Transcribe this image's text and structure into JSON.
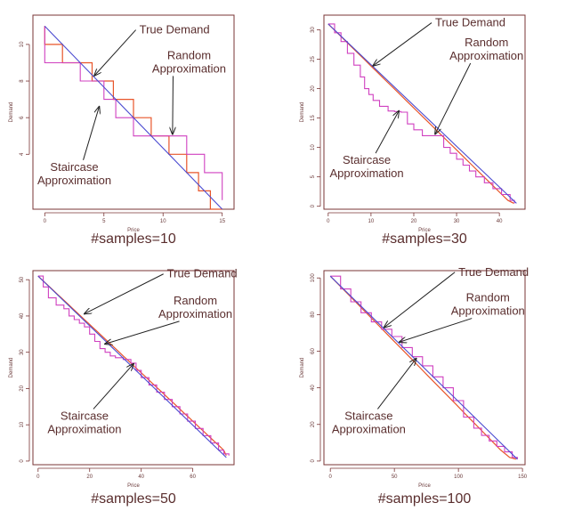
{
  "chart_data": [
    {
      "type": "line",
      "caption": "#samples=10",
      "xlabel": "Price",
      "ylabel": "Demand",
      "xlim": [
        -1,
        16
      ],
      "ylim": [
        1,
        11.6
      ],
      "xticks": [
        0,
        5,
        10,
        15
      ],
      "yticks": [
        4,
        6,
        8,
        10
      ],
      "true_demand": [
        [
          0,
          11
        ],
        [
          15,
          1
        ]
      ],
      "series": [
        {
          "values": [
            [
              0,
              11
            ],
            [
              0,
              10
            ],
            [
              1.5,
              10
            ],
            [
              1.5,
              9
            ],
            [
              4,
              9
            ],
            [
              4,
              8
            ],
            [
              5.8,
              8
            ],
            [
              5.8,
              7
            ],
            [
              7.5,
              7
            ],
            [
              7.5,
              6
            ],
            [
              9,
              6
            ],
            [
              9,
              5
            ],
            [
              10.5,
              5
            ],
            [
              10.5,
              4
            ],
            [
              12,
              4
            ],
            [
              12,
              3
            ],
            [
              13,
              3
            ],
            [
              13,
              2
            ],
            [
              14,
              2
            ],
            [
              14,
              1
            ],
            [
              15,
              1
            ]
          ]
        },
        {
          "values": [
            [
              0,
              11
            ],
            [
              0,
              9
            ],
            [
              3,
              9
            ],
            [
              3,
              8
            ],
            [
              5,
              8
            ],
            [
              5,
              7
            ],
            [
              6,
              7
            ],
            [
              6,
              6
            ],
            [
              7.5,
              6
            ],
            [
              7.5,
              5
            ],
            [
              12,
              5
            ],
            [
              12,
              4
            ],
            [
              13.5,
              4
            ],
            [
              13.5,
              3
            ],
            [
              15,
              3
            ],
            [
              15,
              1.5
            ]
          ]
        }
      ],
      "annotations": [
        {
          "lines": [
            "True Demand"
          ],
          "anchor": "start",
          "tx": 8,
          "ty": 10.6,
          "tip": [
            4.2,
            8.3
          ]
        },
        {
          "lines": [
            "Random",
            "Approximation"
          ],
          "anchor": "middle",
          "tx": 12.2,
          "ty": 9.2,
          "tip": [
            10.8,
            5.1
          ]
        },
        {
          "lines": [
            "Staircase",
            "Approximation"
          ],
          "anchor": "middle",
          "tx": 2.5,
          "ty": 3.1,
          "tip": [
            4.6,
            6.6
          ]
        }
      ]
    },
    {
      "type": "line",
      "caption": "#samples=30",
      "xlabel": "Price",
      "ylabel": "Demand",
      "xlim": [
        -1,
        46
      ],
      "ylim": [
        -0.5,
        32.5
      ],
      "xticks": [
        0,
        10,
        20,
        30,
        40
      ],
      "yticks": [
        0,
        5,
        10,
        15,
        20,
        25,
        30
      ],
      "true_demand": [
        [
          0,
          31
        ],
        [
          44,
          0.5
        ]
      ],
      "series": [
        {
          "values": [
            [
              0,
              31
            ],
            [
              1.4,
              30
            ],
            [
              2.8,
              29
            ],
            [
              4.2,
              28
            ],
            [
              5.6,
              27
            ],
            [
              7,
              26
            ],
            [
              8.4,
              25
            ],
            [
              9.8,
              24
            ],
            [
              11.2,
              23
            ],
            [
              12.6,
              22
            ],
            [
              14,
              21
            ],
            [
              15.4,
              20
            ],
            [
              16.8,
              19
            ],
            [
              18.2,
              18
            ],
            [
              19.6,
              17
            ],
            [
              21,
              16
            ],
            [
              22.4,
              15
            ],
            [
              23.8,
              14
            ],
            [
              25.2,
              13
            ],
            [
              26.6,
              12
            ],
            [
              28,
              11
            ],
            [
              29.4,
              10
            ],
            [
              30.8,
              9
            ],
            [
              32.2,
              8
            ],
            [
              33.6,
              7
            ],
            [
              35,
              6
            ],
            [
              36.4,
              5
            ],
            [
              37.8,
              4
            ],
            [
              39.2,
              3
            ],
            [
              40.6,
              2
            ],
            [
              42,
              1
            ],
            [
              43.4,
              0.5
            ]
          ]
        },
        {
          "values": [
            [
              0,
              31
            ],
            [
              1.5,
              29.5
            ],
            [
              3,
              28
            ],
            [
              4.5,
              26
            ],
            [
              6,
              24
            ],
            [
              7.5,
              22
            ],
            [
              8.5,
              20
            ],
            [
              9.5,
              19
            ],
            [
              10.5,
              18
            ],
            [
              12,
              17
            ],
            [
              14,
              16.2
            ],
            [
              15.5,
              16.1
            ],
            [
              17,
              16
            ],
            [
              18.5,
              14
            ],
            [
              20,
              13
            ],
            [
              22,
              12
            ],
            [
              25,
              12
            ],
            [
              27,
              10
            ],
            [
              28.5,
              9
            ],
            [
              30,
              8
            ],
            [
              31.5,
              7
            ],
            [
              33,
              6
            ],
            [
              34.5,
              5
            ],
            [
              36.5,
              4
            ],
            [
              38.5,
              3
            ],
            [
              40.5,
              2
            ],
            [
              42.5,
              1
            ],
            [
              43.5,
              0.5
            ]
          ]
        }
      ],
      "annotations": [
        {
          "lines": [
            "True Demand"
          ],
          "anchor": "start",
          "tx": 25,
          "ty": 30.6,
          "tip": [
            10.5,
            23.9
          ]
        },
        {
          "lines": [
            "Random",
            "Approximation"
          ],
          "anchor": "middle",
          "tx": 37,
          "ty": 27.2,
          "tip": [
            25,
            12.3
          ]
        },
        {
          "lines": [
            "Staircase",
            "Approximation"
          ],
          "anchor": "middle",
          "tx": 9,
          "ty": 7.2,
          "tip": [
            16.5,
            16.2
          ]
        }
      ]
    },
    {
      "type": "line",
      "caption": "#samples=50",
      "xlabel": "Price",
      "ylabel": "Demand",
      "xlim": [
        -2,
        76
      ],
      "ylim": [
        -1,
        52.5
      ],
      "xticks": [
        0,
        20,
        40,
        60
      ],
      "yticks": [
        0,
        10,
        20,
        30,
        40,
        50
      ],
      "true_demand": [
        [
          0,
          51
        ],
        [
          73,
          1
        ]
      ],
      "series": [
        {
          "values": [
            [
              0,
              51
            ],
            [
              1.5,
              50
            ],
            [
              3,
              49
            ],
            [
              4.5,
              48
            ],
            [
              6,
              47
            ],
            [
              7.5,
              46
            ],
            [
              9,
              45
            ],
            [
              10.5,
              44
            ],
            [
              12,
              43
            ],
            [
              13.5,
              42
            ],
            [
              15,
              41
            ],
            [
              16.5,
              40
            ],
            [
              18,
              39
            ],
            [
              19.5,
              38
            ],
            [
              21,
              37
            ],
            [
              22.5,
              36
            ],
            [
              24,
              35
            ],
            [
              25.5,
              34
            ],
            [
              27,
              33
            ],
            [
              28.5,
              32
            ],
            [
              30,
              31
            ],
            [
              31.5,
              30
            ],
            [
              33,
              29
            ],
            [
              34.5,
              28
            ],
            [
              36,
              27
            ],
            [
              37.5,
              26
            ],
            [
              39,
              25
            ],
            [
              40.5,
              24
            ],
            [
              42,
              23
            ],
            [
              43.5,
              22
            ],
            [
              45,
              21
            ],
            [
              46.5,
              20
            ],
            [
              48,
              19
            ],
            [
              49.5,
              18
            ],
            [
              51,
              17
            ],
            [
              52.5,
              16
            ],
            [
              54,
              15
            ],
            [
              55.5,
              14
            ],
            [
              57,
              13
            ],
            [
              58.5,
              12
            ],
            [
              60,
              11
            ],
            [
              61.5,
              10
            ],
            [
              63,
              9
            ],
            [
              64.5,
              8
            ],
            [
              66,
              7
            ],
            [
              67.5,
              6
            ],
            [
              69,
              5
            ],
            [
              70.5,
              4
            ],
            [
              72,
              3
            ],
            [
              73,
              1.5
            ]
          ]
        },
        {
          "values": [
            [
              0,
              51
            ],
            [
              2,
              48
            ],
            [
              4,
              45
            ],
            [
              7,
              43
            ],
            [
              10,
              42
            ],
            [
              12,
              40
            ],
            [
              14,
              39
            ],
            [
              16,
              38
            ],
            [
              18,
              37
            ],
            [
              20,
              35
            ],
            [
              22,
              33
            ],
            [
              24,
              31
            ],
            [
              26,
              30
            ],
            [
              28,
              29
            ],
            [
              30,
              28.5
            ],
            [
              33,
              28
            ],
            [
              36,
              27
            ],
            [
              38,
              25
            ],
            [
              40,
              23
            ],
            [
              43,
              21
            ],
            [
              46,
              19
            ],
            [
              49,
              17
            ],
            [
              52,
              15
            ],
            [
              55,
              13
            ],
            [
              58,
              11
            ],
            [
              61,
              9
            ],
            [
              64,
              7
            ],
            [
              67,
              5
            ],
            [
              70,
              3
            ],
            [
              72,
              2
            ],
            [
              74,
              1.5
            ]
          ]
        }
      ],
      "annotations": [
        {
          "lines": [
            "True Demand"
          ],
          "anchor": "start",
          "tx": 50,
          "ty": 50.6,
          "tip": [
            18,
            40.6
          ]
        },
        {
          "lines": [
            "Random",
            "Approximation"
          ],
          "anchor": "middle",
          "tx": 61,
          "ty": 43.2,
          "tip": [
            26,
            32.3
          ]
        },
        {
          "lines": [
            "Staircase",
            "Approximation"
          ],
          "anchor": "middle",
          "tx": 18,
          "ty": 11.4,
          "tip": [
            37,
            26.8
          ]
        }
      ]
    },
    {
      "type": "line",
      "caption": "#samples=100",
      "xlabel": "Price",
      "ylabel": "Demand",
      "xlim": [
        -5,
        152
      ],
      "ylim": [
        -2,
        104
      ],
      "xticks": [
        0,
        50,
        100,
        150
      ],
      "yticks": [
        0,
        20,
        40,
        60,
        80,
        100
      ],
      "true_demand": [
        [
          0,
          101
        ],
        [
          146,
          1
        ]
      ],
      "series": [
        {
          "values": [
            [
              0,
              101
            ],
            [
              7,
              96
            ],
            [
              14,
              91
            ],
            [
              21,
              86
            ],
            [
              28,
              81
            ],
            [
              35,
              76
            ],
            [
              42,
              71
            ],
            [
              49,
              66
            ],
            [
              56,
              61
            ],
            [
              63,
              56
            ],
            [
              70,
              51
            ],
            [
              77,
              46
            ],
            [
              84,
              41
            ],
            [
              91,
              36
            ],
            [
              98,
              31
            ],
            [
              105,
              26
            ],
            [
              112,
              21
            ],
            [
              119,
              16
            ],
            [
              126,
              11
            ],
            [
              133,
              6
            ],
            [
              140,
              2
            ],
            [
              145,
              1
            ]
          ]
        },
        {
          "values": [
            [
              0,
              101
            ],
            [
              8,
              94
            ],
            [
              16,
              87
            ],
            [
              24,
              81
            ],
            [
              32,
              76
            ],
            [
              40,
              72
            ],
            [
              48,
              68
            ],
            [
              56,
              62
            ],
            [
              64,
              57
            ],
            [
              72,
              52
            ],
            [
              80,
              46
            ],
            [
              88,
              40
            ],
            [
              96,
              33
            ],
            [
              104,
              24
            ],
            [
              112,
              18
            ],
            [
              118,
              14
            ],
            [
              124,
              11
            ],
            [
              130,
              8
            ],
            [
              136,
              5
            ],
            [
              142,
              2
            ],
            [
              146,
              1
            ]
          ]
        }
      ],
      "annotations": [
        {
          "lines": [
            "True Demand"
          ],
          "anchor": "start",
          "tx": 100,
          "ty": 101.2,
          "tip": [
            42,
            73
          ]
        },
        {
          "lines": [
            "Random",
            "Approximation"
          ],
          "anchor": "middle",
          "tx": 123,
          "ty": 87.2,
          "tip": [
            54,
            65
          ]
        },
        {
          "lines": [
            "Staircase",
            "Approximation"
          ],
          "anchor": "middle",
          "tx": 30,
          "ty": 22.6,
          "tip": [
            67,
            56
          ]
        }
      ]
    }
  ]
}
